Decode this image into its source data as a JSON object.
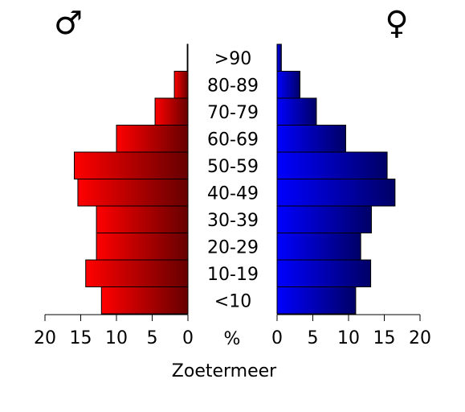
{
  "chart_data": {
    "type": "bar",
    "orientation": "horizontal-population-pyramid",
    "title": "Zoetermeer",
    "center_axis_label": "%",
    "categories": [
      "<10",
      "10-19",
      "20-29",
      "30-39",
      "40-49",
      "50-59",
      "60-69",
      "70-79",
      "80-89",
      ">90"
    ],
    "series": [
      {
        "name": "♂",
        "side": "left",
        "color_from": "#ff0000",
        "color_to": "#660000",
        "values": [
          12.1,
          14.3,
          12.8,
          12.8,
          15.4,
          15.9,
          10.0,
          4.6,
          1.9,
          0.1
        ]
      },
      {
        "name": "♀",
        "side": "right",
        "color_from": "#0000ff",
        "color_to": "#000066",
        "values": [
          11.0,
          13.1,
          11.7,
          13.2,
          16.5,
          15.4,
          9.6,
          5.5,
          3.2,
          0.6
        ]
      }
    ],
    "xlim": [
      0,
      20
    ],
    "ticks": [
      0,
      5,
      10,
      15,
      20
    ],
    "tick_labels_left": [
      "20",
      "15",
      "10",
      "5",
      "0"
    ],
    "tick_labels_right": [
      "0",
      "5",
      "10",
      "15",
      "20"
    ],
    "grid": false,
    "legend": "none"
  }
}
